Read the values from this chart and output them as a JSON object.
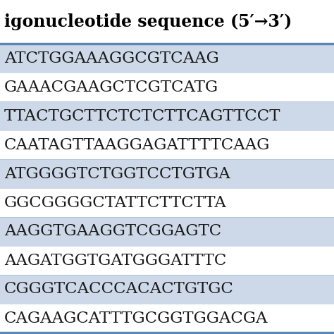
{
  "title": "igonucleotide sequence (5′→3′)",
  "rows": [
    {
      "text": "ATCTGGAAAGGCGTCAAG",
      "bg": "#cdd9e8"
    },
    {
      "text": "GAAACGAAGCTCGTCATG",
      "bg": "#ffffff"
    },
    {
      "text": "TTACTGCTTCTCTCTTCAGTTCCT",
      "bg": "#cdd9e8"
    },
    {
      "text": "CAATAGTTAAGGAGATTTTCAAG",
      "bg": "#ffffff"
    },
    {
      "text": "ATGGGGTCTGGTCCTGTGA",
      "bg": "#cdd9e8"
    },
    {
      "text": "GGCGGGGCTATTCTTCTTA",
      "bg": "#ffffff"
    },
    {
      "text": "AAGGTGAAGGTCGGAGTC",
      "bg": "#cdd9e8"
    },
    {
      "text": "AAGATGGTGATGGGATTTC",
      "bg": "#ffffff"
    },
    {
      "text": "CGGGTCACCCACACTGTGC",
      "bg": "#cdd9e8"
    },
    {
      "text": "CAGAAGCATTTGCGGTGGACGA",
      "bg": "#ffffff"
    }
  ],
  "header_bg": "#ffffff",
  "border_color": "#5b87b5",
  "row_text_color": "#1a1a1a",
  "header_text_color": "#000000",
  "fig_width": 4.74,
  "fig_height": 4.74,
  "dpi": 100
}
